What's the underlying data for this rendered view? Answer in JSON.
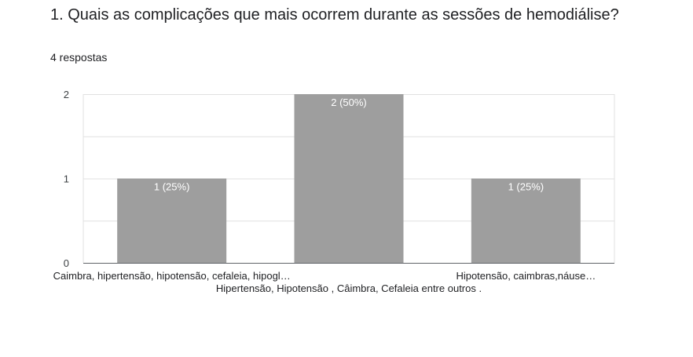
{
  "question": {
    "title": "1. Quais as complicações que mais ocorrem durante as sessões de hemodiálise?",
    "response_count": "4 respostas"
  },
  "colors": {
    "bar": "#9e9e9e",
    "grid": "#e0e0e0",
    "axis": "#5f6368"
  },
  "chart_data": {
    "type": "bar",
    "title": "",
    "xlabel": "",
    "ylabel": "",
    "categories": [
      "Caimbra, hipertensão, hipotensão, cefaleia, hipogl…",
      "Hipertensão, Hipotensão , Câimbra, Cefaleia entre outros .",
      "Hipotensão, caimbras,náuse…"
    ],
    "values": [
      1,
      2,
      1
    ],
    "data_labels": [
      "1 (25%)",
      "2 (50%)",
      "1 (25%)"
    ],
    "ylim": [
      0,
      2
    ],
    "y_ticks": [
      0,
      1,
      2
    ],
    "grid": true,
    "legend": "none"
  }
}
